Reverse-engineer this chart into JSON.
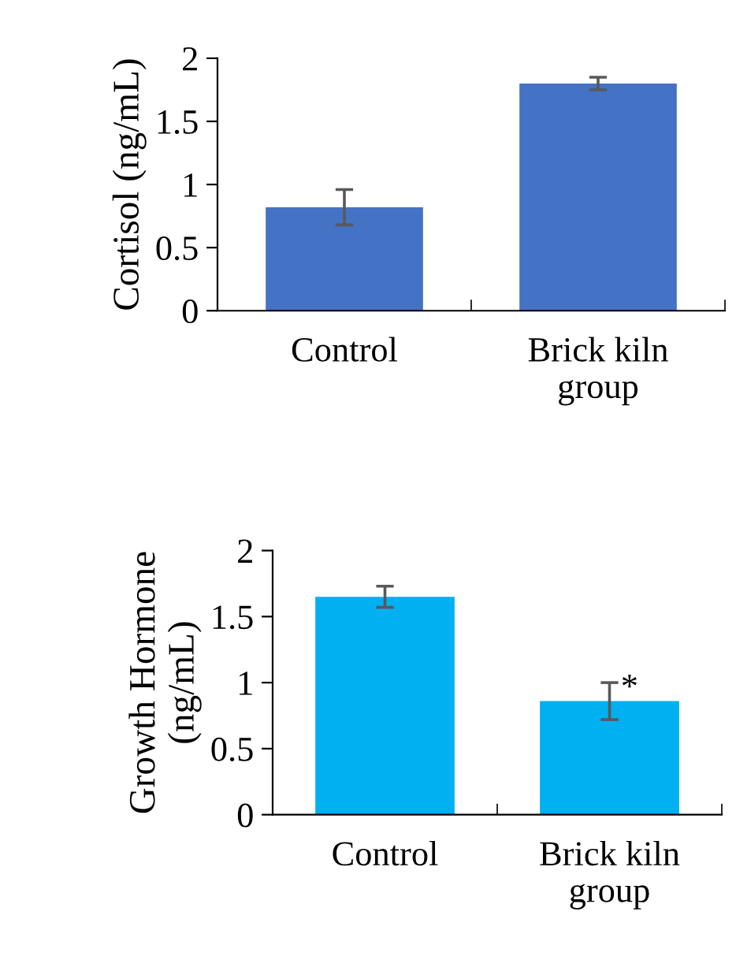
{
  "chart_data": [
    {
      "type": "bar",
      "ylabel": "Cortisol (ng/mL)",
      "categories": [
        "Control",
        "Brick kiln\ngroup"
      ],
      "values": [
        0.82,
        1.8
      ],
      "errors": [
        0.14,
        0.05
      ],
      "color": "#4472c4",
      "ylim": [
        0,
        2
      ],
      "yticks": [
        0,
        0.5,
        1,
        1.5,
        2
      ],
      "grid": false,
      "legend": false
    },
    {
      "type": "bar",
      "ylabel": "Growth Hormone\n(ng/mL)",
      "categories": [
        "Control",
        "Brick kiln\ngroup"
      ],
      "values": [
        1.65,
        0.86
      ],
      "errors": [
        0.08,
        0.14
      ],
      "color": "#00b0f0",
      "ylim": [
        0,
        2
      ],
      "yticks": [
        0,
        0.5,
        1,
        1.5,
        2
      ],
      "grid": false,
      "legend": false,
      "annotations": [
        {
          "text": "*",
          "x": "Brick kiln\ngroup",
          "y": 0.95
        }
      ]
    }
  ]
}
